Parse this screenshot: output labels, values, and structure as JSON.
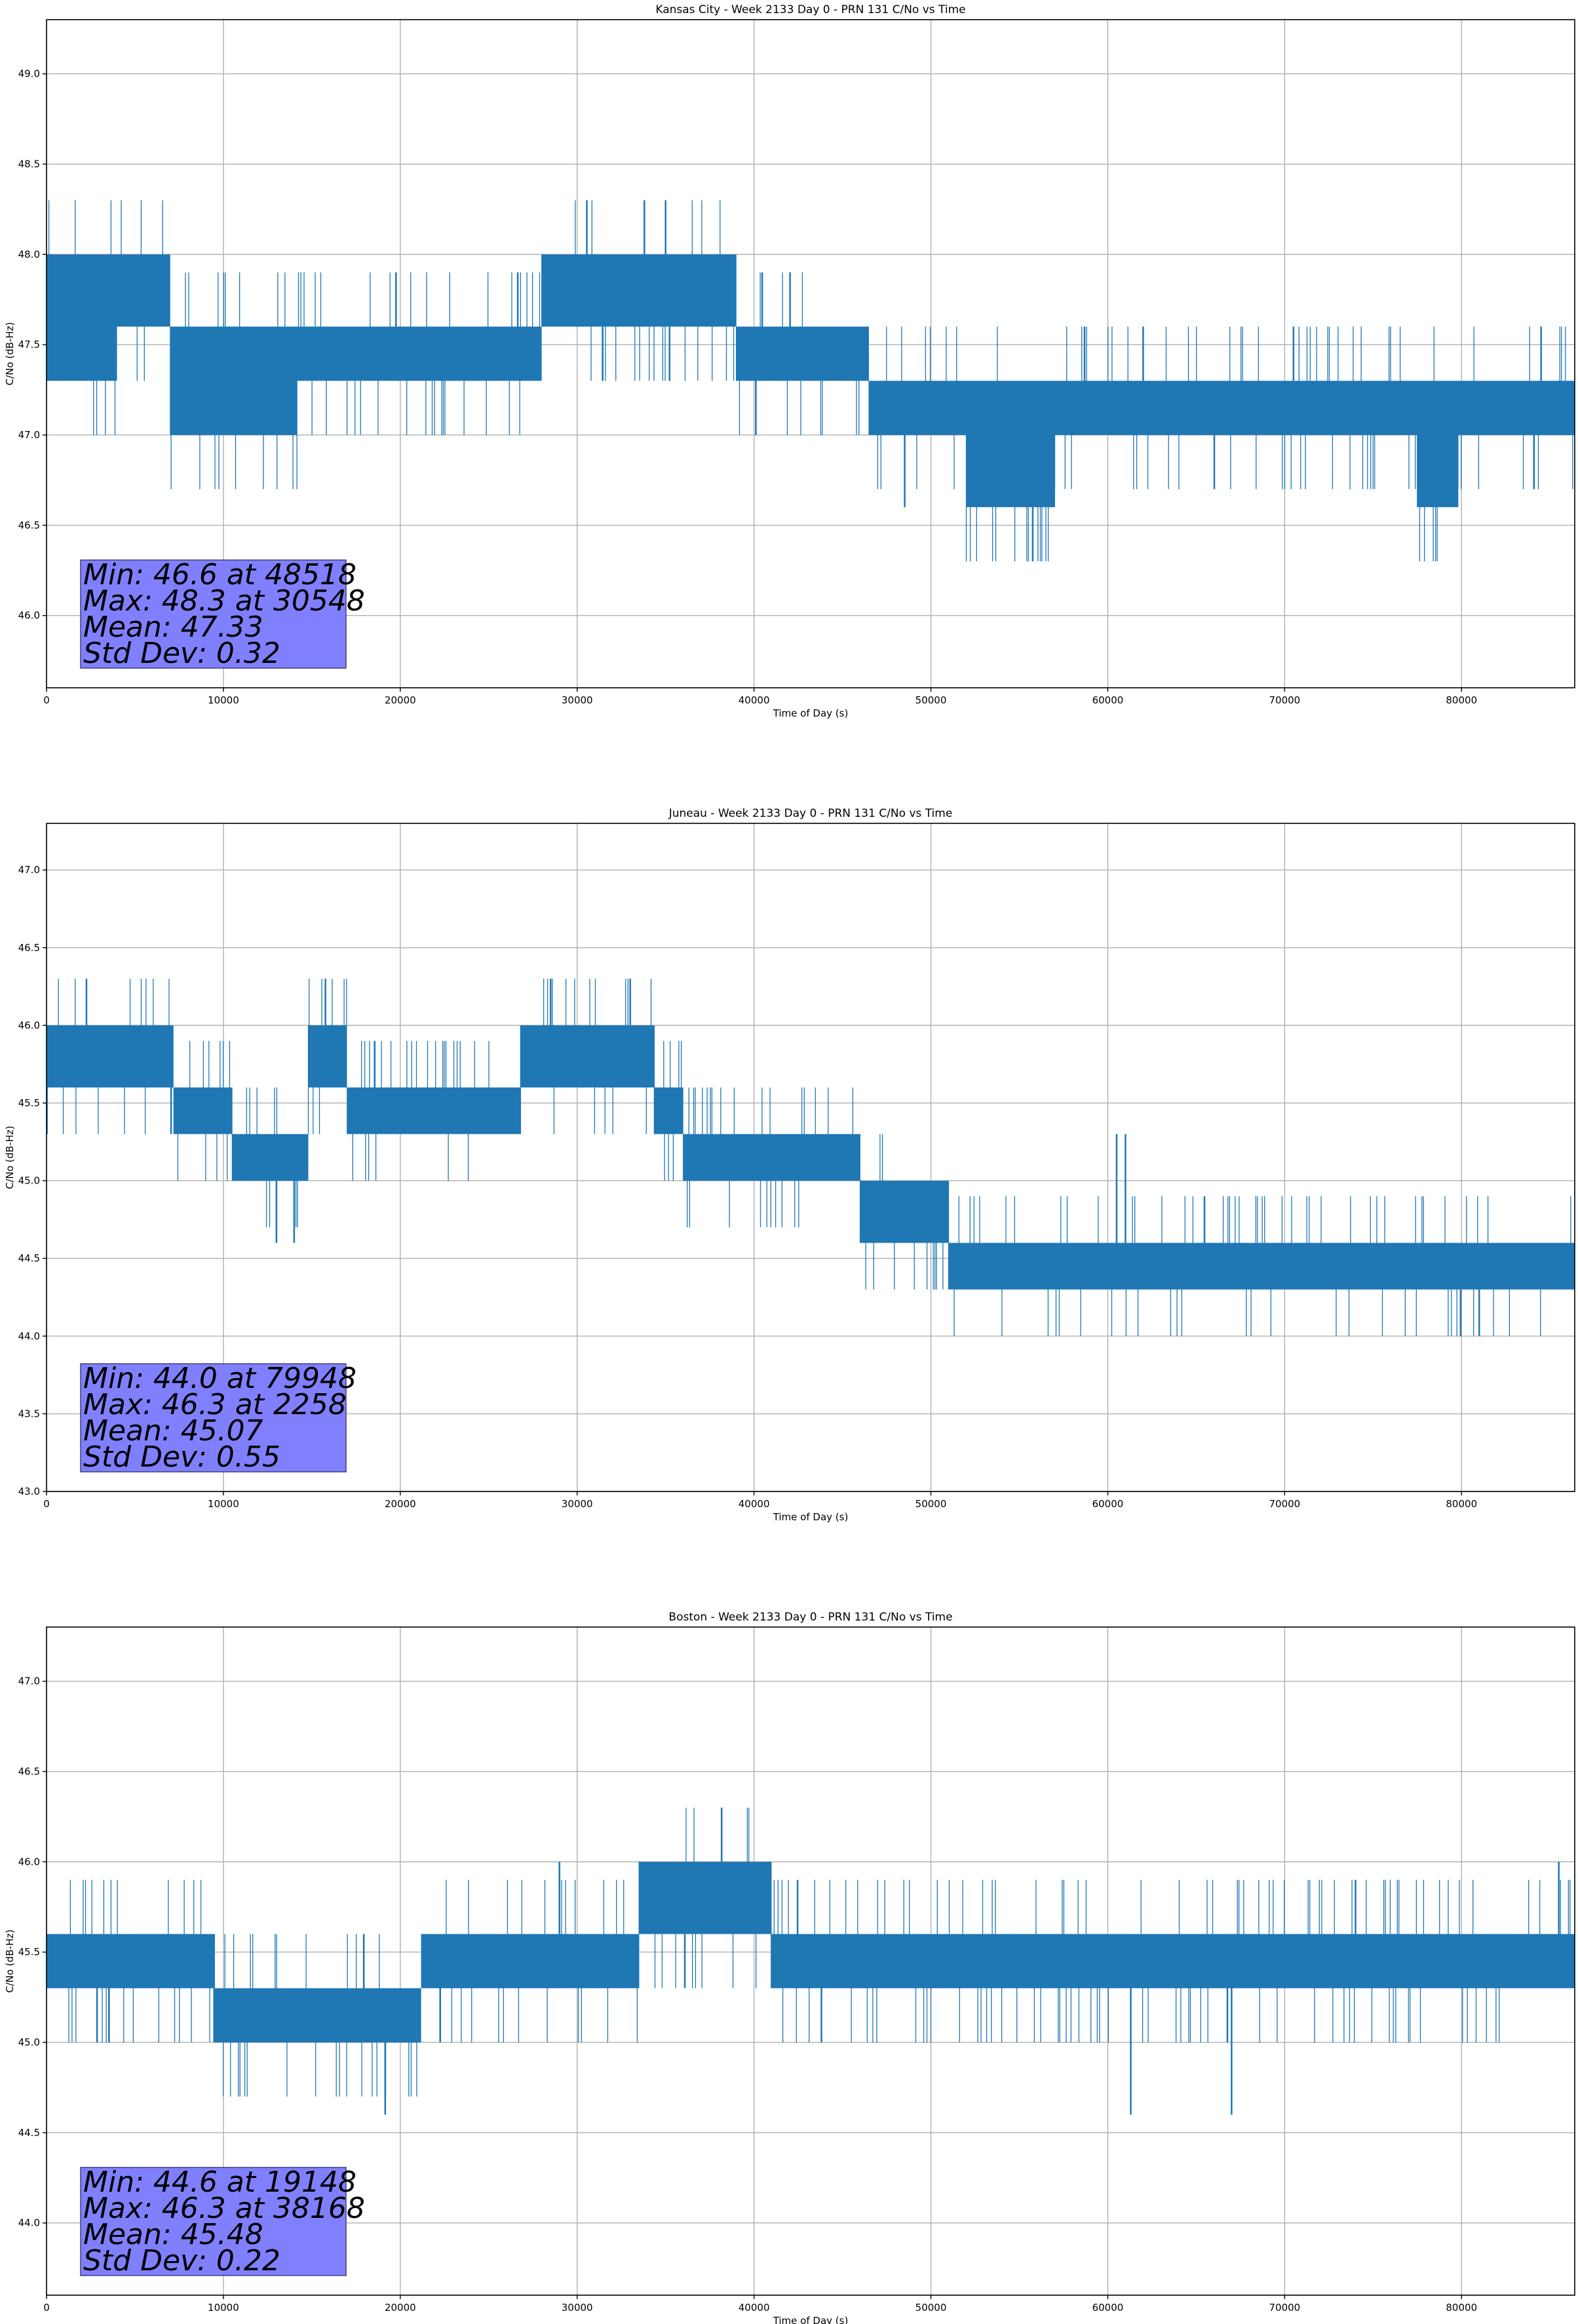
{
  "chart_data": [
    {
      "type": "line",
      "title": "Kansas City - Week 2133 Day 0 - PRN 131 C/No vs Time",
      "xlabel": "Time of Day (s)",
      "ylabel": "C/No (dB-Hz)",
      "xlim": [
        0,
        86400
      ],
      "ylim": [
        45.6,
        49.3
      ],
      "xticks": [
        0,
        10000,
        20000,
        30000,
        40000,
        50000,
        60000,
        70000,
        80000
      ],
      "yticks": [
        46.0,
        46.5,
        47.0,
        47.5,
        48.0,
        48.5,
        49.0
      ],
      "grid": true,
      "color": "#1f77b4",
      "segments": [
        [
          0,
          48.0,
          47.3
        ],
        [
          4000,
          48.0,
          47.6
        ],
        [
          7000,
          47.6,
          47.0
        ],
        [
          14200,
          47.6,
          47.3
        ],
        [
          28000,
          48.0,
          47.6
        ],
        [
          39000,
          47.6,
          47.3
        ],
        [
          46500,
          47.3,
          47.0
        ],
        [
          52000,
          47.3,
          46.6
        ],
        [
          57000,
          47.3,
          47.0
        ],
        [
          77500,
          47.3,
          46.6
        ],
        [
          79800,
          47.3,
          47.0
        ],
        [
          86400,
          47.3,
          47.0
        ]
      ],
      "spikes": [
        [
          30548,
          48.3
        ],
        [
          33800,
          48.3
        ],
        [
          35000,
          48.3
        ],
        [
          48518,
          46.6
        ],
        [
          62000,
          47.6
        ],
        [
          70500,
          47.6
        ],
        [
          84500,
          47.6
        ]
      ],
      "stats": {
        "lines": [
          "Min: 46.6 at 48518",
          "Max: 48.3 at 30548",
          "Mean: 47.33",
          "Std Dev: 0.32"
        ],
        "min": 46.6,
        "min_time": 48518,
        "max": 48.3,
        "max_time": 30548,
        "mean": 47.33,
        "std": 0.32
      }
    },
    {
      "type": "line",
      "title": "Juneau - Week 2133 Day 0 - PRN 131 C/No vs Time",
      "xlabel": "Time of Day (s)",
      "ylabel": "C/No (dB-Hz)",
      "xlim": [
        0,
        86400
      ],
      "ylim": [
        43.0,
        47.3
      ],
      "xticks": [
        0,
        10000,
        20000,
        30000,
        40000,
        50000,
        60000,
        70000,
        80000
      ],
      "yticks": [
        43.0,
        43.5,
        44.0,
        44.5,
        45.0,
        45.5,
        46.0,
        46.5,
        47.0
      ],
      "grid": true,
      "color": "#1f77b4",
      "segments": [
        [
          0,
          46.0,
          45.6
        ],
        [
          7200,
          45.6,
          45.3
        ],
        [
          10500,
          45.3,
          45.0
        ],
        [
          14800,
          46.0,
          45.6
        ],
        [
          17000,
          45.6,
          45.3
        ],
        [
          26000,
          45.6,
          45.3
        ],
        [
          26800,
          46.0,
          45.6
        ],
        [
          34400,
          45.6,
          45.3
        ],
        [
          36000,
          45.3,
          45.0
        ],
        [
          46000,
          45.0,
          44.6
        ],
        [
          51000,
          44.6,
          44.3
        ],
        [
          76500,
          44.6,
          44.3
        ],
        [
          86400,
          44.6,
          44.3
        ]
      ],
      "spikes": [
        [
          2258,
          46.3
        ],
        [
          13000,
          44.6
        ],
        [
          14000,
          44.6
        ],
        [
          28500,
          46.3
        ],
        [
          33000,
          46.3
        ],
        [
          79948,
          44.0
        ],
        [
          81000,
          44.0
        ],
        [
          60500,
          45.3
        ],
        [
          61000,
          45.3
        ]
      ],
      "stats": {
        "lines": [
          "Min: 44.0 at 79948",
          "Max: 46.3 at 2258",
          "Mean: 45.07",
          "Std Dev: 0.55"
        ],
        "min": 44.0,
        "min_time": 79948,
        "max": 46.3,
        "max_time": 2258,
        "mean": 45.07,
        "std": 0.55
      }
    },
    {
      "type": "line",
      "title": "Boston - Week 2133 Day 0 - PRN 131 C/No vs Time",
      "xlabel": "Time of Day (s)",
      "ylabel": "C/No (dB-Hz)",
      "xlim": [
        0,
        86400
      ],
      "ylim": [
        43.6,
        47.3
      ],
      "xticks": [
        0,
        10000,
        20000,
        30000,
        40000,
        50000,
        60000,
        70000,
        80000
      ],
      "yticks": [
        44.0,
        44.5,
        45.0,
        45.5,
        46.0,
        46.5,
        47.0
      ],
      "grid": true,
      "color": "#1f77b4",
      "segments": [
        [
          0,
          45.6,
          45.3
        ],
        [
          9500,
          45.3,
          45.0
        ],
        [
          21200,
          45.6,
          45.3
        ],
        [
          33500,
          46.0,
          45.6
        ],
        [
          41000,
          45.6,
          45.3
        ],
        [
          86400,
          45.6,
          45.3
        ]
      ],
      "spikes": [
        [
          19148,
          44.6
        ],
        [
          38168,
          46.3
        ],
        [
          61300,
          44.6
        ],
        [
          67000,
          44.6
        ],
        [
          29000,
          46.0
        ],
        [
          85500,
          46.0
        ]
      ],
      "stats": {
        "lines": [
          "Min: 44.6 at 19148",
          "Max: 46.3 at 38168",
          "Mean: 45.48",
          "Std Dev: 0.22"
        ],
        "min": 44.6,
        "min_time": 19148,
        "max": 46.3,
        "max_time": 38168,
        "mean": 45.48,
        "std": 0.22
      }
    }
  ]
}
